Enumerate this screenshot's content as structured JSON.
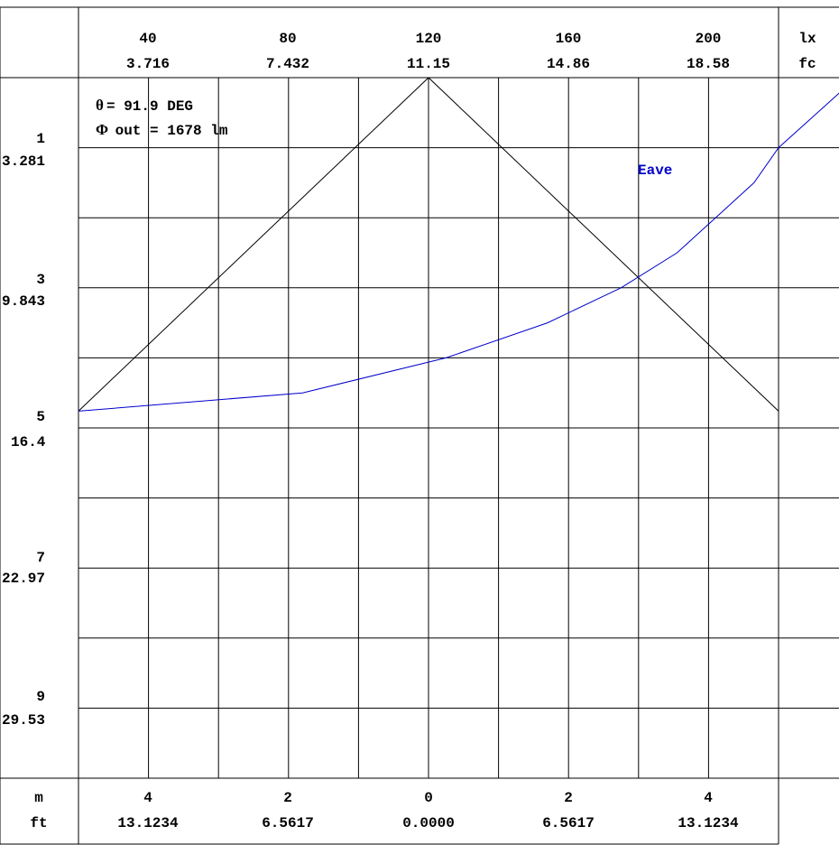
{
  "chart_data": {
    "type": "line",
    "title": "",
    "unit_labels": {
      "top_primary": "lx",
      "top_secondary": "fc",
      "bottom_primary": "m",
      "bottom_secondary": "ft"
    },
    "top_ticks": [
      {
        "lx": "40",
        "fc": "3.716"
      },
      {
        "lx": "80",
        "fc": "7.432"
      },
      {
        "lx": "120",
        "fc": "11.15"
      },
      {
        "lx": "160",
        "fc": "14.86"
      },
      {
        "lx": "200",
        "fc": "18.58"
      }
    ],
    "left_ticks": [
      {
        "m": "1",
        "ft": "3.281"
      },
      {
        "m": "3",
        "ft": "9.843"
      },
      {
        "m": "5",
        "ft": "16.4"
      },
      {
        "m": "7",
        "ft": "22.97"
      },
      {
        "m": "9",
        "ft": "29.53"
      }
    ],
    "bottom_ticks": [
      {
        "m": "4",
        "ft": "13.1234"
      },
      {
        "m": "2",
        "ft": "6.5617"
      },
      {
        "m": "0",
        "ft": "0.0000"
      },
      {
        "m": "2",
        "ft": "6.5617"
      },
      {
        "m": "4",
        "ft": "13.1234"
      }
    ],
    "annotations": {
      "theta_symbol": "θ",
      "theta_text": "= 91.9 DEG",
      "flux_symbol": "Φ",
      "flux_text": " out = 1678 lm"
    },
    "xlim_m": [
      -5,
      5
    ],
    "ylim_m": [
      0,
      10
    ],
    "lux_range": [
      0,
      220
    ],
    "grid": true,
    "series": [
      {
        "name": "Eave",
        "role": "average illuminance vs mounting height",
        "color": "#0000cc",
        "points_lux_vs_height_m": [
          [
            0.1,
            220
          ],
          [
            1.0,
            200
          ],
          [
            1.5,
            193
          ],
          [
            2.0,
            182
          ],
          [
            2.5,
            171
          ],
          [
            3.0,
            155
          ],
          [
            3.5,
            134
          ],
          [
            4.0,
            105
          ],
          [
            4.5,
            64
          ],
          [
            4.76,
            0
          ]
        ]
      },
      {
        "name": "",
        "role": "beam spread half-width vs mounting height",
        "color": "#000000",
        "points_m_vs_height_m": [
          [
            0,
            0
          ],
          [
            -5,
            4.76
          ],
          [
            5,
            4.76
          ]
        ]
      }
    ]
  }
}
